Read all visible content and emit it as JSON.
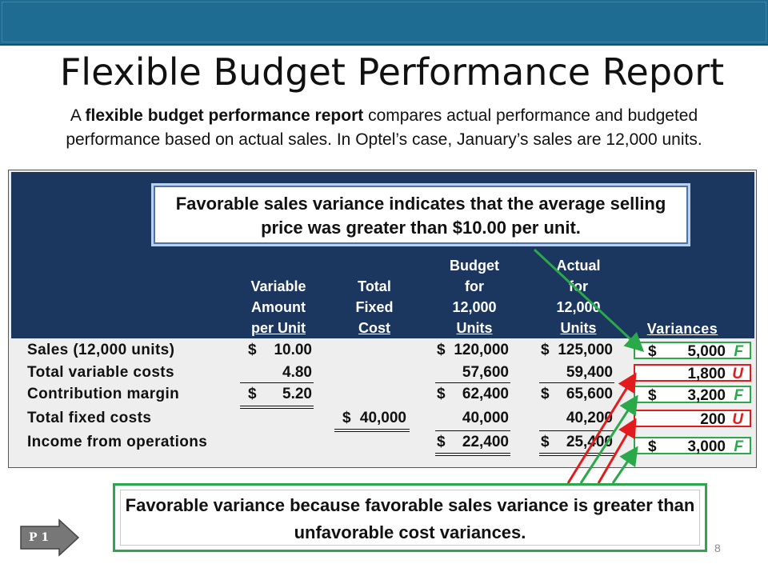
{
  "title": "Flexible Budget Performance Report",
  "intro": {
    "prefix": "A ",
    "bold": "flexible budget performance report",
    "rest": " compares actual performance and budgeted performance based on actual sales. In Optel’s case, January’s sales are 12,000 units."
  },
  "callout_top": "Favorable sales variance indicates that the average selling price was greater than $10.00 per unit.",
  "callout_bottom": "Favorable variance because favorable sales variance is greater than unfavorable cost variances.",
  "headers": {
    "variable": [
      "Variable",
      "Amount",
      "per Unit"
    ],
    "fixed": [
      "Total",
      "Fixed",
      "Cost"
    ],
    "budget": [
      "Budget",
      "for",
      "12,000",
      "Units"
    ],
    "actual": [
      "Actual",
      "for",
      "12,000",
      "Units"
    ],
    "variances": "Variances"
  },
  "rows": [
    {
      "label": "Sales (12,000 units)",
      "unit": "10.00",
      "unit_dollar": "$",
      "fixed": "",
      "fixed_dollar": "",
      "budget": "120,000",
      "budget_dollar": "$",
      "actual": "125,000",
      "actual_dollar": "$",
      "variance": "5,000",
      "variance_dollar": "$",
      "code": "F"
    },
    {
      "label": "Total variable costs",
      "unit": "4.80",
      "unit_dollar": "",
      "fixed": "",
      "fixed_dollar": "",
      "budget": "57,600",
      "budget_dollar": "",
      "actual": "59,400",
      "actual_dollar": "",
      "variance": "1,800",
      "variance_dollar": "",
      "code": "U"
    },
    {
      "label": "Contribution margin",
      "unit": "5.20",
      "unit_dollar": "$",
      "fixed": "",
      "fixed_dollar": "",
      "budget": "62,400",
      "budget_dollar": "$",
      "actual": "65,600",
      "actual_dollar": "$",
      "variance": "3,200",
      "variance_dollar": "$",
      "code": "F"
    },
    {
      "label": "Total fixed costs",
      "unit": "",
      "unit_dollar": "",
      "fixed": "40,000",
      "fixed_dollar": "$",
      "budget": "40,000",
      "budget_dollar": "",
      "actual": "40,200",
      "actual_dollar": "",
      "variance": "200",
      "variance_dollar": "",
      "code": "U"
    },
    {
      "label": "Income from operations",
      "unit": "",
      "unit_dollar": "",
      "fixed": "",
      "fixed_dollar": "",
      "budget": "22,400",
      "budget_dollar": "$",
      "actual": "25,400",
      "actual_dollar": "$",
      "variance": "3,000",
      "variance_dollar": "$",
      "code": "F"
    }
  ],
  "badge": "P 1",
  "page_number": "8",
  "colors": {
    "favorable": "#2aa84a",
    "unfavorable": "#e21c1c",
    "navy": "#1b365f",
    "topbar": "#1f6c92"
  }
}
